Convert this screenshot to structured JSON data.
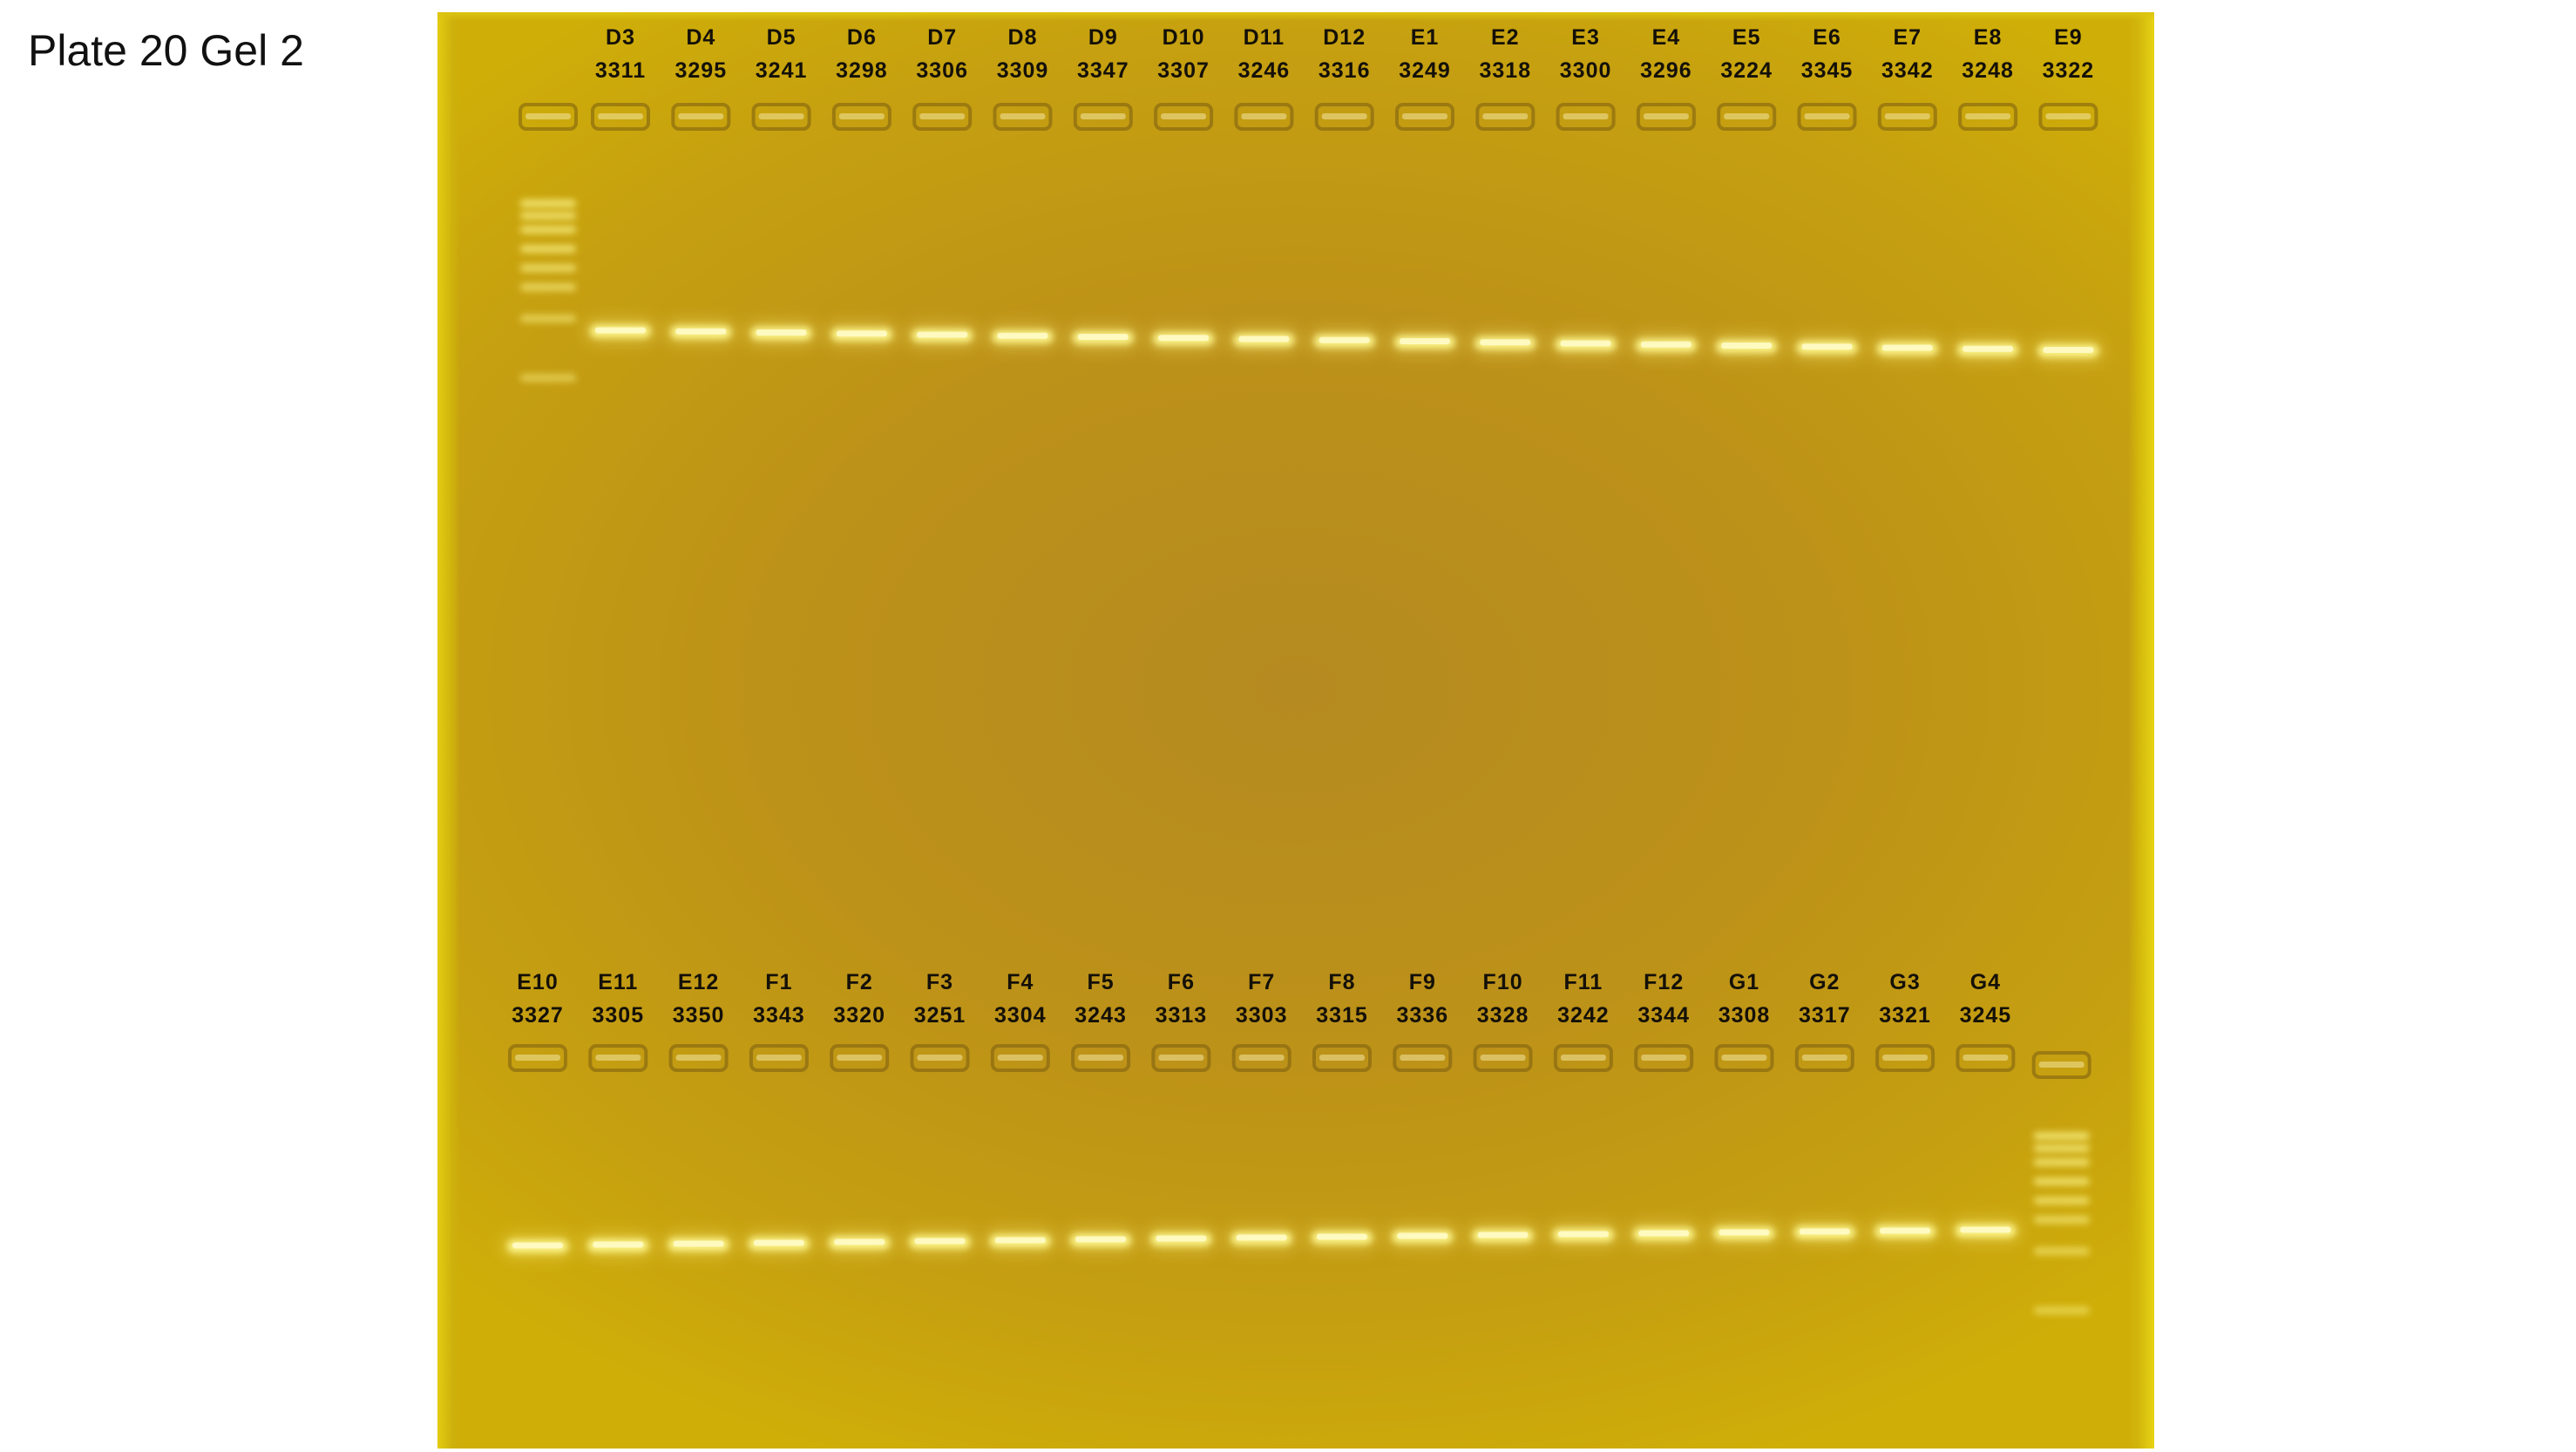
{
  "slide": {
    "title": "Plate 20 Gel 2"
  },
  "colors": {
    "gel_background": "#bd9218",
    "gel_edge": "#e3cc12",
    "band": "#fdf58a",
    "well": "#7a5c10",
    "label_text": "#141008"
  },
  "gel": {
    "top_row": {
      "ladder_position": "left",
      "lanes": [
        {
          "id": "D3",
          "sample": "3311"
        },
        {
          "id": "D4",
          "sample": "3295"
        },
        {
          "id": "D5",
          "sample": "3241"
        },
        {
          "id": "D6",
          "sample": "3298"
        },
        {
          "id": "D7",
          "sample": "3306"
        },
        {
          "id": "D8",
          "sample": "3309"
        },
        {
          "id": "D9",
          "sample": "3347"
        },
        {
          "id": "D10",
          "sample": "3307"
        },
        {
          "id": "D11",
          "sample": "3246"
        },
        {
          "id": "D12",
          "sample": "3316"
        },
        {
          "id": "E1",
          "sample": "3249"
        },
        {
          "id": "E2",
          "sample": "3318"
        },
        {
          "id": "E3",
          "sample": "3300"
        },
        {
          "id": "E4",
          "sample": "3296"
        },
        {
          "id": "E5",
          "sample": "3224"
        },
        {
          "id": "E6",
          "sample": "3345"
        },
        {
          "id": "E7",
          "sample": "3342"
        },
        {
          "id": "E8",
          "sample": "3248"
        },
        {
          "id": "E9",
          "sample": "3322"
        }
      ]
    },
    "bottom_row": {
      "ladder_position": "right",
      "lanes": [
        {
          "id": "E10",
          "sample": "3327"
        },
        {
          "id": "E11",
          "sample": "3305"
        },
        {
          "id": "E12",
          "sample": "3350"
        },
        {
          "id": "F1",
          "sample": "3343"
        },
        {
          "id": "F2",
          "sample": "3320"
        },
        {
          "id": "F3",
          "sample": "3251"
        },
        {
          "id": "F4",
          "sample": "3304"
        },
        {
          "id": "F5",
          "sample": "3243"
        },
        {
          "id": "F6",
          "sample": "3313"
        },
        {
          "id": "F7",
          "sample": "3303"
        },
        {
          "id": "F8",
          "sample": "3315"
        },
        {
          "id": "F9",
          "sample": "3336"
        },
        {
          "id": "F10",
          "sample": "3328"
        },
        {
          "id": "F11",
          "sample": "3242"
        },
        {
          "id": "F12",
          "sample": "3344"
        },
        {
          "id": "G1",
          "sample": "3308"
        },
        {
          "id": "G2",
          "sample": "3317"
        },
        {
          "id": "G3",
          "sample": "3321"
        },
        {
          "id": "G4",
          "sample": "3245"
        }
      ]
    }
  }
}
